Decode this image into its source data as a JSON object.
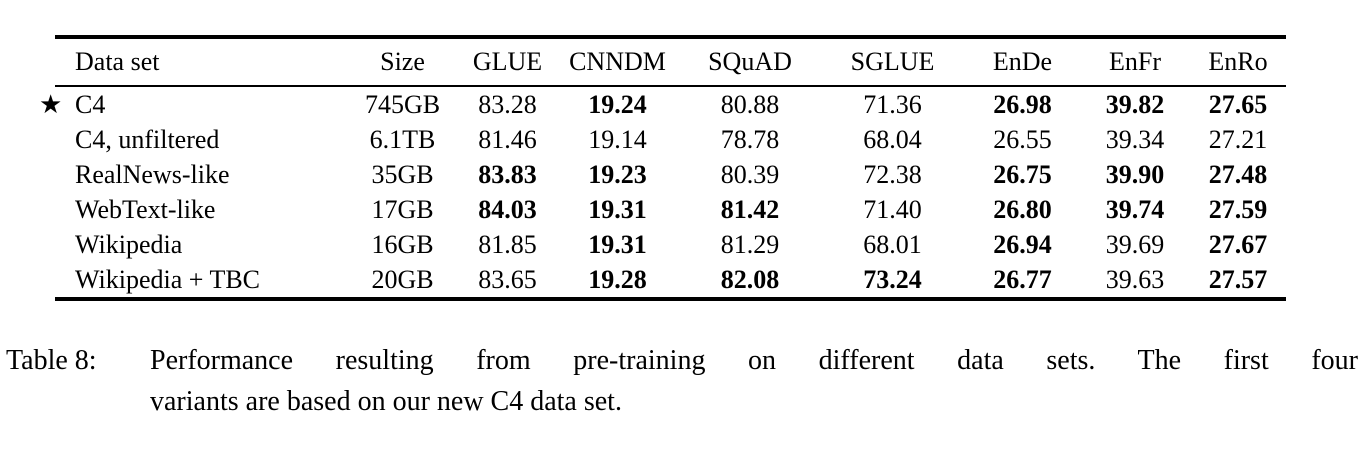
{
  "table": {
    "star_symbol": "★",
    "columns": [
      {
        "label": "Data set"
      },
      {
        "label": "Size"
      },
      {
        "label": "GLUE"
      },
      {
        "label": "CNNDM"
      },
      {
        "label": "SQuAD"
      },
      {
        "label": "SGLUE"
      },
      {
        "label": "EnDe"
      },
      {
        "label": "EnFr"
      },
      {
        "label": "EnRo"
      }
    ],
    "rows": [
      {
        "dataset": "C4",
        "starred": true,
        "cells": [
          {
            "v": "745GB",
            "bold": false
          },
          {
            "v": "83.28",
            "bold": false
          },
          {
            "v": "19.24",
            "bold": true
          },
          {
            "v": "80.88",
            "bold": false
          },
          {
            "v": "71.36",
            "bold": false
          },
          {
            "v": "26.98",
            "bold": true
          },
          {
            "v": "39.82",
            "bold": true
          },
          {
            "v": "27.65",
            "bold": true
          }
        ]
      },
      {
        "dataset": "C4, unfiltered",
        "starred": false,
        "cells": [
          {
            "v": "6.1TB",
            "bold": false
          },
          {
            "v": "81.46",
            "bold": false
          },
          {
            "v": "19.14",
            "bold": false
          },
          {
            "v": "78.78",
            "bold": false
          },
          {
            "v": "68.04",
            "bold": false
          },
          {
            "v": "26.55",
            "bold": false
          },
          {
            "v": "39.34",
            "bold": false
          },
          {
            "v": "27.21",
            "bold": false
          }
        ]
      },
      {
        "dataset": "RealNews-like",
        "starred": false,
        "cells": [
          {
            "v": "35GB",
            "bold": false
          },
          {
            "v": "83.83",
            "bold": true
          },
          {
            "v": "19.23",
            "bold": true
          },
          {
            "v": "80.39",
            "bold": false
          },
          {
            "v": "72.38",
            "bold": false
          },
          {
            "v": "26.75",
            "bold": true
          },
          {
            "v": "39.90",
            "bold": true
          },
          {
            "v": "27.48",
            "bold": true
          }
        ]
      },
      {
        "dataset": "WebText-like",
        "starred": false,
        "cells": [
          {
            "v": "17GB",
            "bold": false
          },
          {
            "v": "84.03",
            "bold": true
          },
          {
            "v": "19.31",
            "bold": true
          },
          {
            "v": "81.42",
            "bold": true
          },
          {
            "v": "71.40",
            "bold": false
          },
          {
            "v": "26.80",
            "bold": true
          },
          {
            "v": "39.74",
            "bold": true
          },
          {
            "v": "27.59",
            "bold": true
          }
        ]
      },
      {
        "dataset": "Wikipedia",
        "starred": false,
        "cells": [
          {
            "v": "16GB",
            "bold": false
          },
          {
            "v": "81.85",
            "bold": false
          },
          {
            "v": "19.31",
            "bold": true
          },
          {
            "v": "81.29",
            "bold": false
          },
          {
            "v": "68.01",
            "bold": false
          },
          {
            "v": "26.94",
            "bold": true
          },
          {
            "v": "39.69",
            "bold": false
          },
          {
            "v": "27.67",
            "bold": true
          }
        ]
      },
      {
        "dataset": "Wikipedia + TBC",
        "starred": false,
        "cells": [
          {
            "v": "20GB",
            "bold": false
          },
          {
            "v": "83.65",
            "bold": false
          },
          {
            "v": "19.28",
            "bold": true
          },
          {
            "v": "82.08",
            "bold": true
          },
          {
            "v": "73.24",
            "bold": true
          },
          {
            "v": "26.77",
            "bold": true
          },
          {
            "v": "39.63",
            "bold": false
          },
          {
            "v": "27.57",
            "bold": true
          }
        ]
      }
    ]
  },
  "caption": {
    "label": "Table 8:",
    "line1": "Performance resulting from pre-training on different data sets.  The first four",
    "line2": "variants are based on our new C4 data set."
  }
}
